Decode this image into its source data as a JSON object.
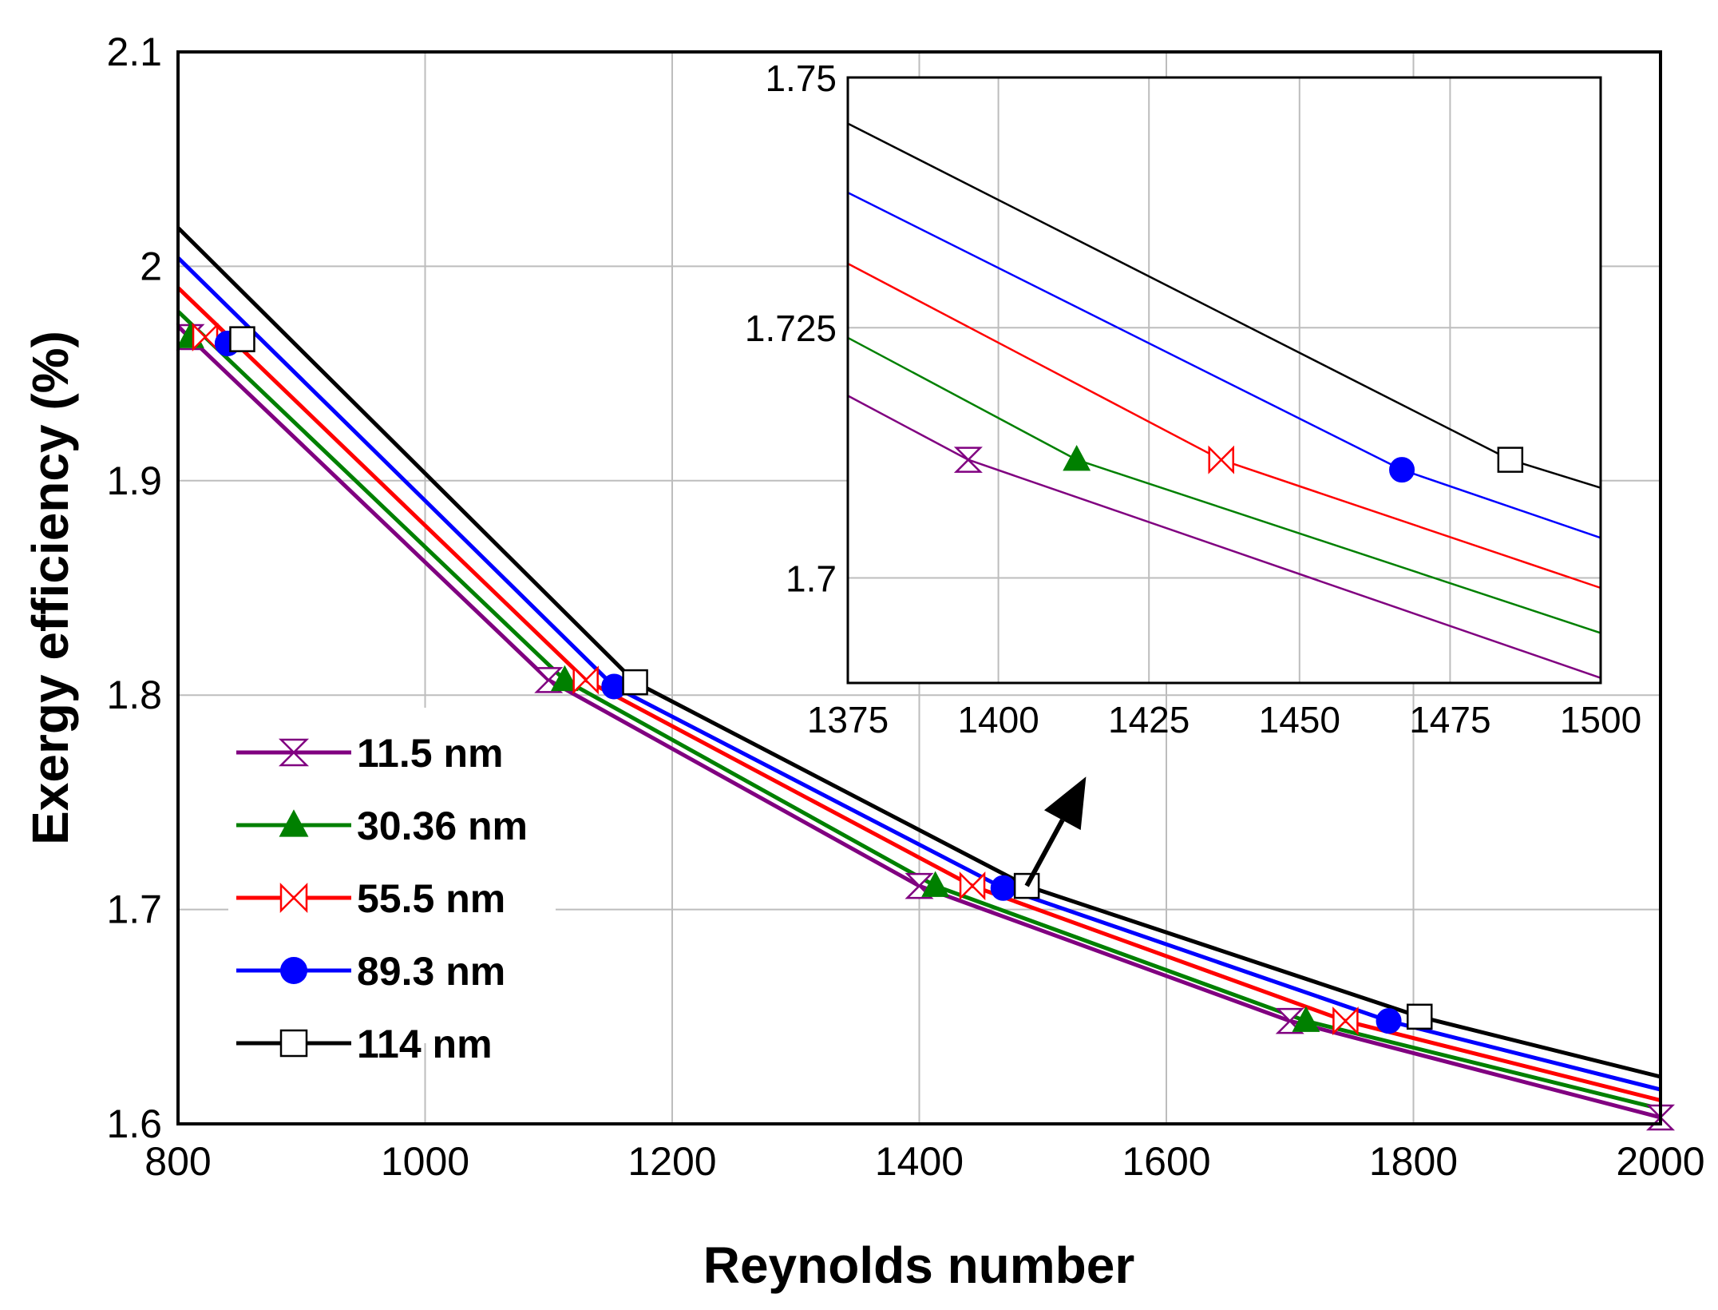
{
  "chart_data": [
    {
      "type": "line",
      "title": "",
      "xlabel": "Reynolds number",
      "ylabel": "Exergy efficiency (%)",
      "xlim": [
        800,
        2000
      ],
      "ylim": [
        1.6,
        2.1
      ],
      "xticks": [
        "800",
        "1000",
        "1200",
        "1400",
        "1600",
        "1800",
        "2000"
      ],
      "yticks": [
        "1.6",
        "1.7",
        "1.8",
        "1.9",
        "2",
        "2.1"
      ],
      "grid": true,
      "legend_position": "bottom-left",
      "series": [
        {
          "name": "11.5 nm",
          "color": "#800080",
          "marker": "hourglass",
          "x": [
            800,
            1100,
            1400,
            1700,
            2000
          ],
          "y": [
            1.972,
            1.807,
            1.711,
            1.648,
            1.603
          ],
          "marker_x": [
            810,
            1100,
            1400,
            1700,
            2000
          ],
          "marker_y": [
            1.967,
            1.807,
            1.711,
            1.648,
            1.603
          ]
        },
        {
          "name": "30.36 nm",
          "color": "#008000",
          "marker": "triangle",
          "x": [
            800,
            1113,
            1413,
            1713,
            2000
          ],
          "y": [
            1.979,
            1.807,
            1.711,
            1.648,
            1.607
          ],
          "marker_x": [
            810,
            1113,
            1413,
            1713
          ],
          "marker_y": [
            1.967,
            1.807,
            1.711,
            1.648
          ]
        },
        {
          "name": "55.5 nm",
          "color": "#ff0000",
          "marker": "bowtie",
          "x": [
            800,
            1130,
            1443,
            1745,
            2000
          ],
          "y": [
            1.99,
            1.807,
            1.711,
            1.648,
            1.611
          ],
          "marker_x": [
            822,
            1130,
            1443,
            1745
          ],
          "marker_y": [
            1.967,
            1.807,
            1.711,
            1.648
          ]
        },
        {
          "name": "89.3 nm",
          "color": "#0000ff",
          "marker": "circle",
          "x": [
            800,
            1153,
            1468,
            1780,
            2000
          ],
          "y": [
            2.004,
            1.804,
            1.71,
            1.648,
            1.616
          ],
          "marker_x": [
            840,
            1153,
            1468,
            1780
          ],
          "marker_y": [
            1.964,
            1.804,
            1.71,
            1.648
          ]
        },
        {
          "name": "114 nm",
          "color": "#000000",
          "marker": "square",
          "x": [
            800,
            1170,
            1487,
            1805,
            2000
          ],
          "y": [
            2.018,
            1.806,
            1.711,
            1.65,
            1.622
          ],
          "marker_x": [
            852,
            1170,
            1487,
            1805
          ],
          "marker_y": [
            1.966,
            1.806,
            1.711,
            1.65
          ]
        }
      ],
      "annotations": [
        {
          "type": "arrow",
          "from": [
            1487,
            1.711
          ],
          "to": [
            1535,
            1.762
          ]
        }
      ]
    },
    {
      "type": "line",
      "title": "",
      "xlabel": "",
      "ylabel": "",
      "xlim": [
        1375,
        1500
      ],
      "ylim": [
        1.6895,
        1.75
      ],
      "xticks": [
        "1375",
        "1400",
        "1425",
        "1450",
        "1475",
        "1500"
      ],
      "yticks": [
        "1.7",
        "1.725",
        "1.75"
      ],
      "grid": true,
      "series": [
        {
          "name": "11.5 nm",
          "color": "#800080",
          "marker": "hourglass",
          "x": [
            1375,
            1395,
            1500
          ],
          "y": [
            1.7182,
            1.7118,
            1.69
          ],
          "marker_x": [
            1395
          ],
          "marker_y": [
            1.7118
          ]
        },
        {
          "name": "30.36 nm",
          "color": "#008000",
          "marker": "triangle",
          "x": [
            1375,
            1413,
            1500
          ],
          "y": [
            1.724,
            1.7118,
            1.6945
          ],
          "marker_x": [
            1413
          ],
          "marker_y": [
            1.7118
          ]
        },
        {
          "name": "55.5 nm",
          "color": "#ff0000",
          "marker": "bowtie",
          "x": [
            1375,
            1437,
            1500
          ],
          "y": [
            1.7314,
            1.7118,
            1.699
          ],
          "marker_x": [
            1437
          ],
          "marker_y": [
            1.7118
          ]
        },
        {
          "name": "89.3 nm",
          "color": "#0000ff",
          "marker": "circle",
          "x": [
            1375,
            1467,
            1500
          ],
          "y": [
            1.7385,
            1.7108,
            1.704
          ],
          "marker_x": [
            1467
          ],
          "marker_y": [
            1.7108
          ]
        },
        {
          "name": "114 nm",
          "color": "#000000",
          "marker": "square",
          "x": [
            1375,
            1485,
            1500
          ],
          "y": [
            1.7454,
            1.7118,
            1.709
          ],
          "marker_x": [
            1485
          ],
          "marker_y": [
            1.7118
          ]
        }
      ]
    }
  ]
}
